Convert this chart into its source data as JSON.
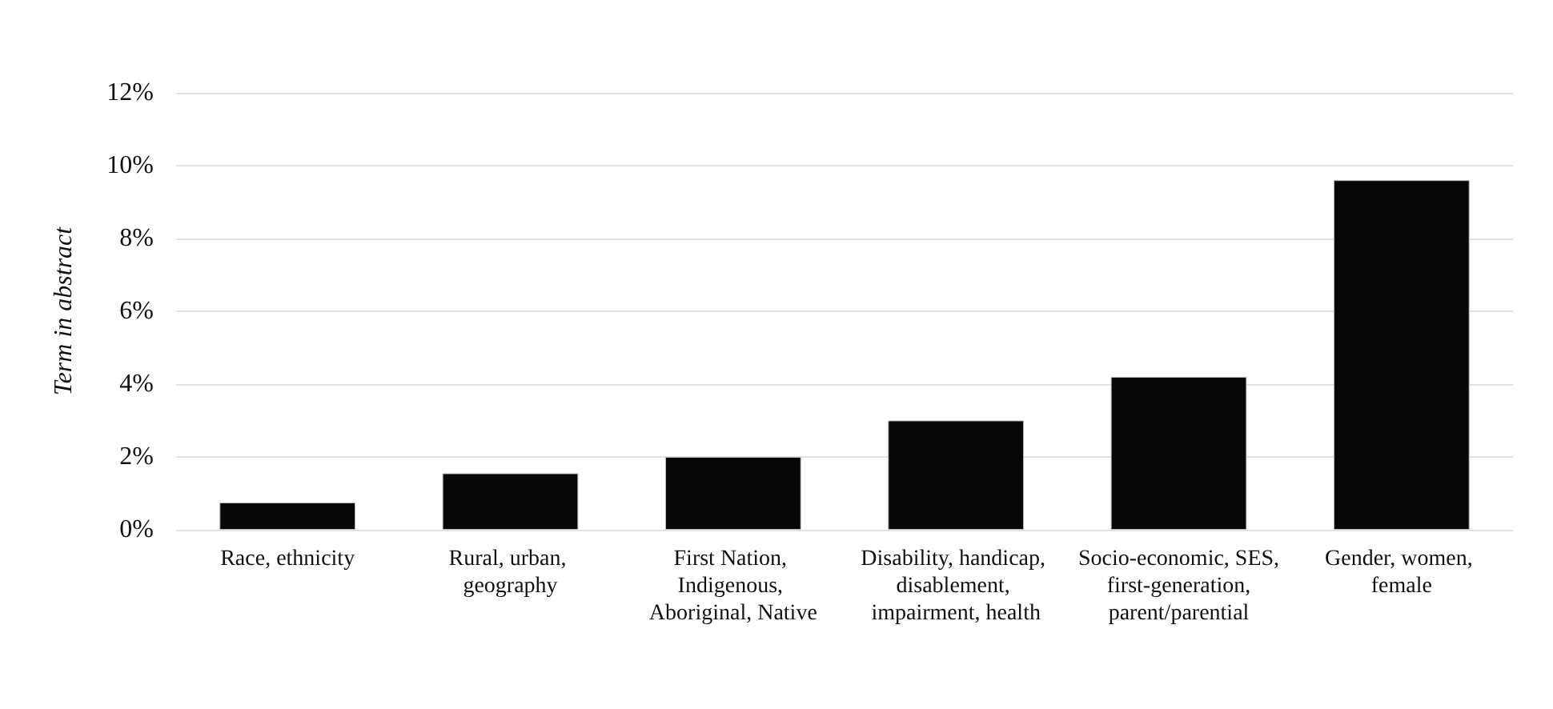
{
  "chart_data": {
    "type": "bar",
    "ylabel": "Term in abstract",
    "categories": [
      "Race, ethnicity",
      "Rural, urban, geography",
      "First Nation, Indigenous, Aboriginal, Native",
      "Disability, handicap, disablement, impairment, health",
      "Socio-economic, SES, first-generation, parent/parential",
      "Gender, women, female"
    ],
    "values": [
      0.75,
      1.55,
      2.0,
      3.0,
      4.2,
      9.6
    ],
    "color": "#070707",
    "ylim": [
      0,
      12
    ],
    "yticks": [
      {
        "value": 0,
        "label": "0%"
      },
      {
        "value": 2,
        "label": "2%"
      },
      {
        "value": 4,
        "label": "4%"
      },
      {
        "value": 6,
        "label": "6%"
      },
      {
        "value": 8,
        "label": "8%"
      },
      {
        "value": 10,
        "label": "10%"
      },
      {
        "value": 12,
        "label": "12%"
      }
    ],
    "grid": "y"
  }
}
